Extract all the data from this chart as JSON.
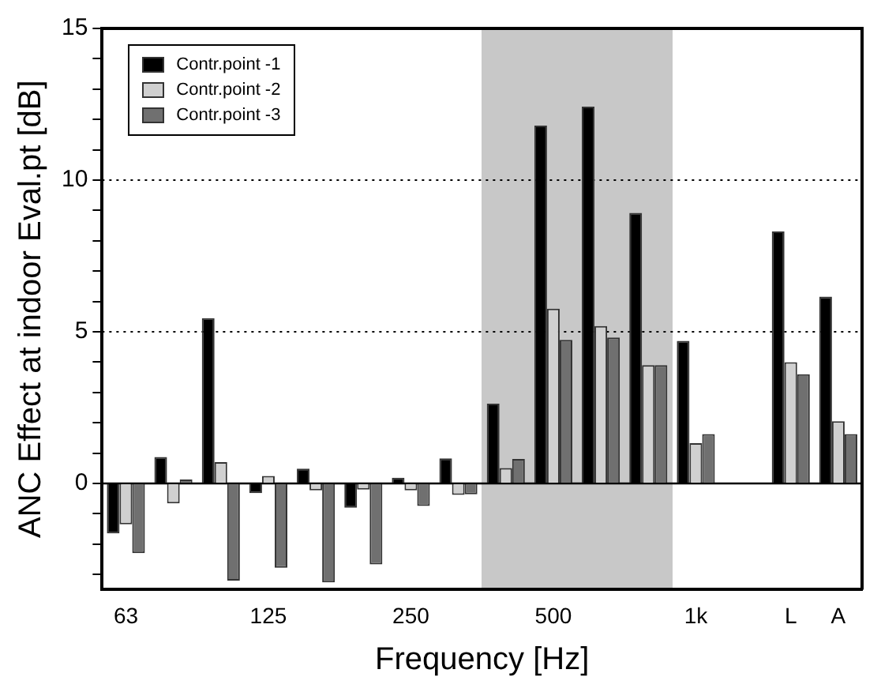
{
  "chart_data": {
    "type": "bar",
    "xlabel": "Frequency [Hz]",
    "ylabel": "ANC Effect at indoor Eval.pt [dB]",
    "categories": [
      "63",
      null,
      null,
      "125",
      null,
      null,
      "250",
      null,
      null,
      "500",
      null,
      null,
      "1k",
      null,
      "L",
      "A"
    ],
    "series": [
      {
        "name": "Contr.point -1",
        "color": "#000000",
        "values": [
          -1.65,
          0.87,
          5.45,
          -0.32,
          0.49,
          -0.8,
          0.19,
          0.83,
          2.63,
          11.8,
          12.42,
          8.92,
          4.7,
          null,
          8.31,
          6.16
        ]
      },
      {
        "name": "Contr.point -2",
        "color": "#d0d0d0",
        "values": [
          -1.35,
          -0.66,
          0.7,
          0.25,
          -0.23,
          -0.2,
          -0.23,
          -0.38,
          0.51,
          5.76,
          5.19,
          3.9,
          1.33,
          null,
          4.0,
          2.05
        ]
      },
      {
        "name": "Contr.point -3",
        "color": "#707070",
        "values": [
          -2.3,
          0.13,
          -3.2,
          -2.78,
          -3.26,
          -2.67,
          -0.74,
          -0.36,
          0.81,
          4.73,
          4.81,
          3.9,
          1.63,
          null,
          3.6,
          1.63
        ]
      }
    ],
    "ylim": [
      -3.5,
      15
    ],
    "yticks": [
      {
        "value": -3,
        "label": null
      },
      {
        "value": -2,
        "label": null
      },
      {
        "value": -1,
        "label": null
      },
      0,
      {
        "value": 1,
        "label": null
      },
      {
        "value": 2,
        "label": null
      },
      {
        "value": 3,
        "label": null
      },
      {
        "value": 4,
        "label": null
      },
      5,
      {
        "value": 6,
        "label": null
      },
      {
        "value": 7,
        "label": null
      },
      {
        "value": 8,
        "label": null
      },
      {
        "value": 9,
        "label": null
      },
      10,
      {
        "value": 11,
        "label": null
      },
      {
        "value": 12,
        "label": null
      },
      {
        "value": 13,
        "label": null
      },
      {
        "value": 14,
        "label": null
      },
      15
    ],
    "grid": "y",
    "line_style": "dotted",
    "legend": "top left",
    "ref_lines": [
      {
        "axis": "y",
        "value": 0,
        "color": "#000000"
      }
    ]
  }
}
